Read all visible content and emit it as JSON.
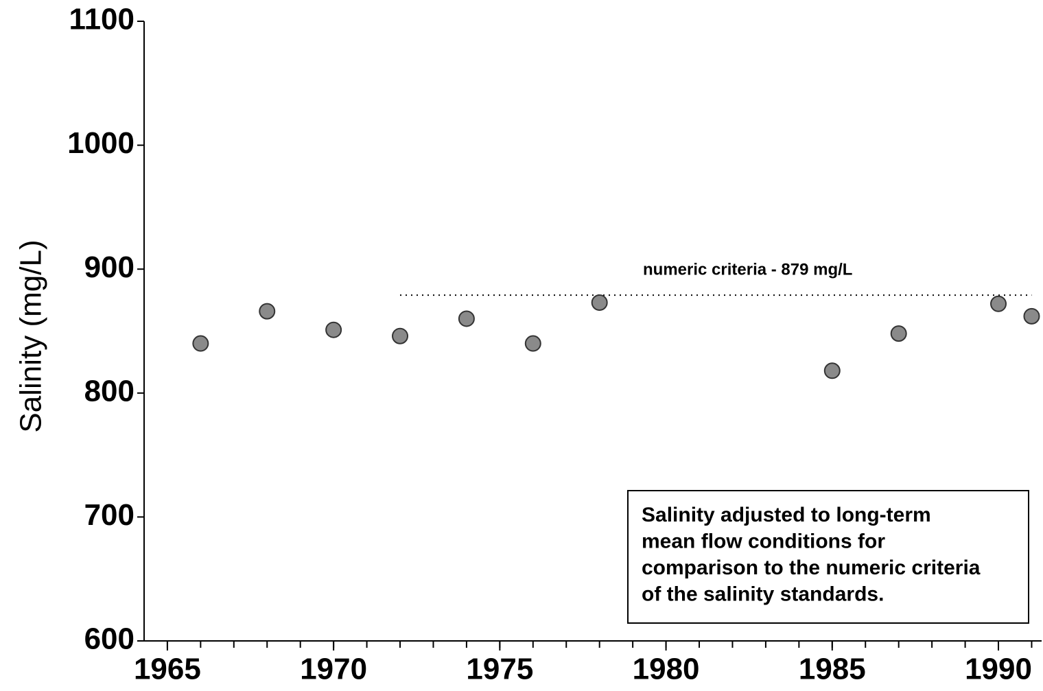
{
  "chart_data": {
    "type": "scatter",
    "y_label": "Salinity (mg/L)",
    "x": [
      1966,
      1968,
      1970,
      1972,
      1974,
      1976,
      1978,
      1985,
      1987,
      1990,
      1991
    ],
    "values": [
      840,
      866,
      851,
      846,
      860,
      840,
      873,
      818,
      848,
      872,
      862
    ],
    "color": "#8a8a8a",
    "xlim": [
      1964.3,
      1991.3
    ],
    "ylim": [
      600,
      1100
    ],
    "xticks": [
      1965,
      1970,
      1975,
      1980,
      1985,
      1990
    ],
    "xminor_ticks": [
      1965,
      1966,
      1967,
      1968,
      1969,
      1970,
      1971,
      1972,
      1973,
      1974,
      1975,
      1976,
      1977,
      1978,
      1979,
      1980,
      1981,
      1982,
      1983,
      1984,
      1985,
      1986,
      1987,
      1988,
      1989,
      1990,
      1991
    ],
    "yticks": [
      600,
      700,
      800,
      900,
      1000,
      1100
    ],
    "reference_line": {
      "value": 879,
      "x": [
        1972,
        1991
      ],
      "label": "numeric criteria - 879 mg/L"
    },
    "annotation": [
      "Salinity adjusted to long-term",
      "mean flow conditions for",
      "comparison to the numeric criteria",
      "of the salinity standards."
    ]
  }
}
